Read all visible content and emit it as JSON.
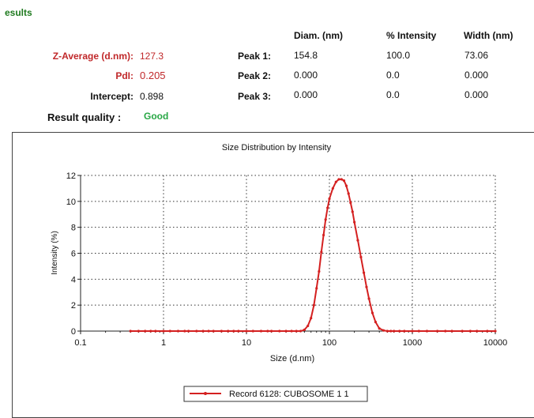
{
  "results": {
    "title": "esults",
    "z_average": {
      "label": "Z-Average (d.nm):",
      "value": "127.3"
    },
    "pdi": {
      "label": "PdI:",
      "value": "0.205"
    },
    "intercept": {
      "label": "Intercept:",
      "value": "0.898"
    },
    "quality": {
      "label": "Result quality :",
      "value": "Good"
    },
    "columns": [
      "Diam. (nm)",
      "% Intensity",
      "Width (nm)"
    ],
    "peaks": [
      {
        "label": "Peak 1:",
        "diam": "154.8",
        "intensity": "100.0",
        "width": "73.06"
      },
      {
        "label": "Peak 2:",
        "diam": "0.000",
        "intensity": "0.0",
        "width": "0.000"
      },
      {
        "label": "Peak 3:",
        "diam": "0.000",
        "intensity": "0.0",
        "width": "0.000"
      }
    ]
  },
  "colors": {
    "series": "#d42020",
    "accent_red": "#c0282a",
    "title_green": "#1f7a1f",
    "good_green": "#28a745"
  },
  "chart_data": {
    "type": "line",
    "title": "Size Distribution by Intensity",
    "xlabel": "Size (d.nm)",
    "ylabel": "Intensity (%)",
    "xscale": "log",
    "xlim": [
      0.1,
      10000
    ],
    "ylim": [
      0,
      12
    ],
    "xticks": [
      "0.1",
      "1",
      "10",
      "100",
      "1000",
      "10000"
    ],
    "yticks": [
      "0",
      "2",
      "4",
      "6",
      "8",
      "10",
      "12"
    ],
    "grid": true,
    "legend_position": "bottom",
    "series": [
      {
        "name": "Record 6128: CUBOSOME 1 1",
        "x": [
          0.4,
          0.5,
          0.6,
          0.7,
          0.8,
          1,
          1.2,
          1.5,
          1.8,
          2,
          2.5,
          3,
          3.5,
          4,
          5,
          6,
          7,
          8,
          10,
          12,
          15,
          18,
          20,
          25,
          30,
          35,
          40,
          45,
          50,
          55,
          60,
          65,
          70,
          75,
          80,
          85,
          90,
          95,
          100,
          110,
          120,
          130,
          140,
          150,
          160,
          170,
          180,
          190,
          200,
          220,
          240,
          260,
          280,
          300,
          330,
          360,
          400,
          450,
          500,
          550,
          600,
          700,
          800,
          1000,
          1200,
          1500,
          2000,
          2500,
          3000,
          4000,
          5000,
          6000,
          8000,
          10000
        ],
        "y": [
          0,
          0,
          0,
          0,
          0,
          0,
          0,
          0,
          0,
          0,
          0,
          0,
          0,
          0,
          0,
          0,
          0,
          0,
          0,
          0,
          0,
          0,
          0,
          0,
          0,
          0,
          0,
          0,
          0.1,
          0.4,
          1.0,
          2.0,
          3.3,
          4.6,
          6.1,
          7.4,
          8.6,
          9.5,
          10.2,
          11.0,
          11.5,
          11.7,
          11.7,
          11.6,
          11.2,
          10.6,
          9.9,
          9.2,
          8.4,
          7.0,
          5.7,
          4.5,
          3.4,
          2.5,
          1.4,
          0.7,
          0.2,
          0.05,
          0,
          0,
          0,
          0,
          0,
          0,
          0,
          0,
          0,
          0,
          0,
          0,
          0,
          0,
          0,
          0
        ]
      }
    ]
  }
}
